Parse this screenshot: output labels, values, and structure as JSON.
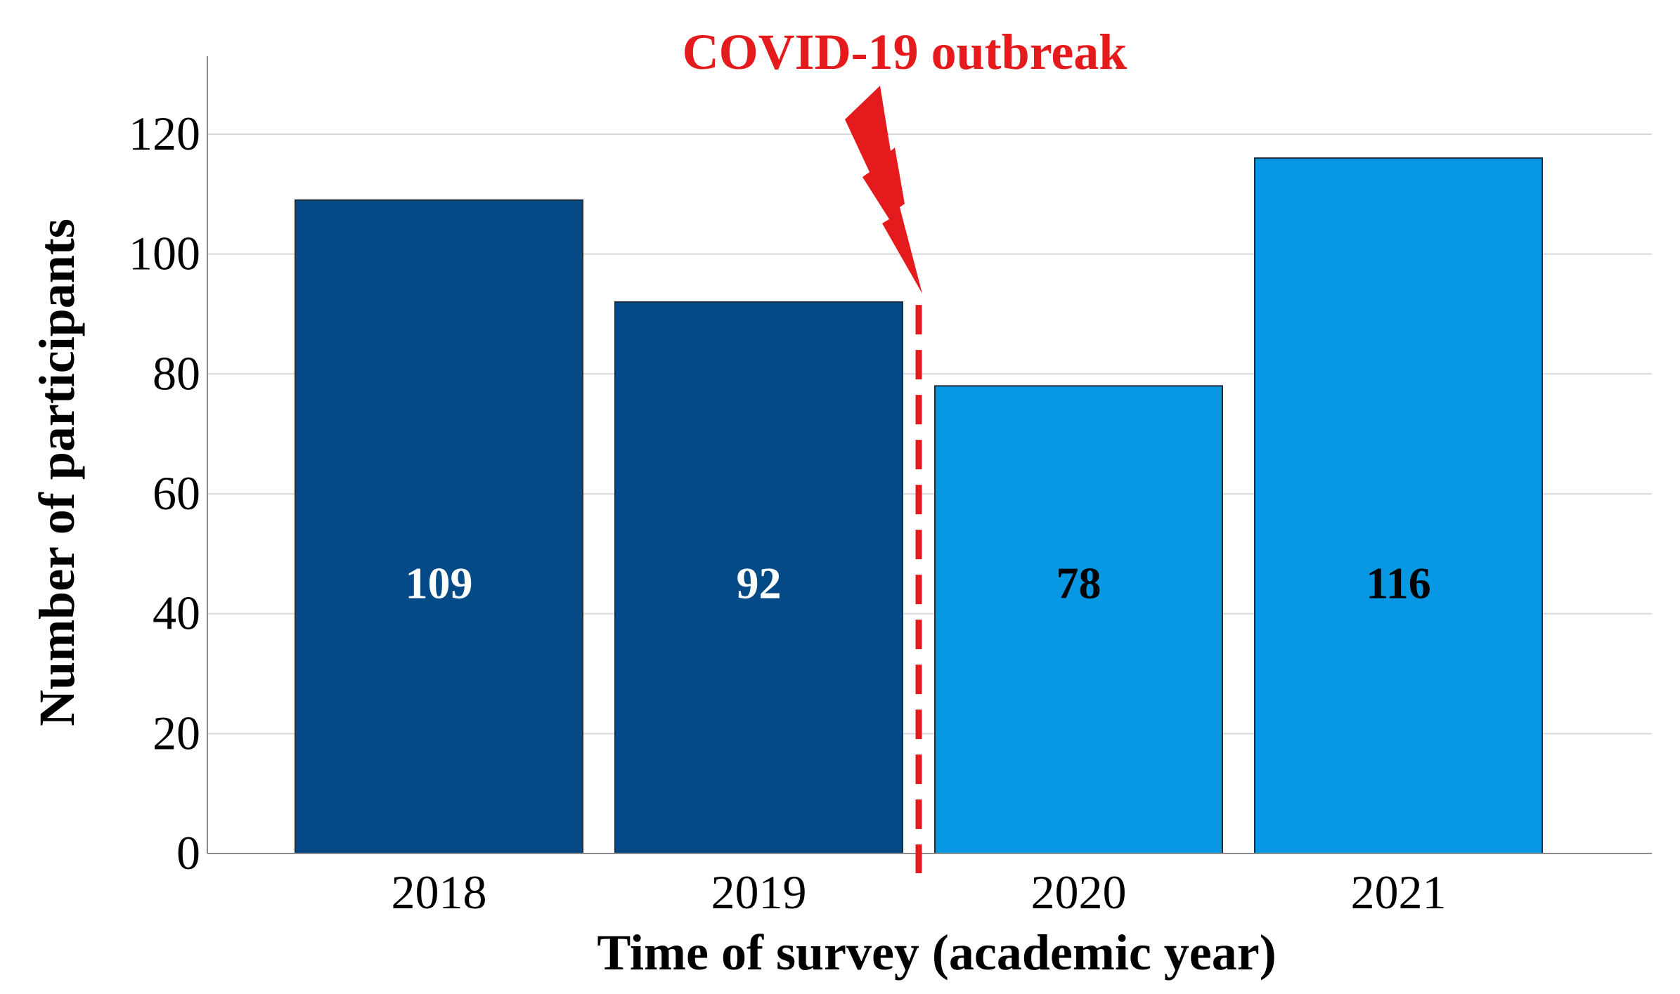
{
  "chart_data": {
    "type": "bar",
    "title": "",
    "xlabel": "Time of survey (academic year)",
    "ylabel": "Number of participants",
    "categories": [
      "2018",
      "2019",
      "2020",
      "2021"
    ],
    "values": [
      109,
      92,
      78,
      116
    ],
    "data_labels": [
      "109",
      "92",
      "78",
      "116"
    ],
    "bar_colors": [
      "#034a87",
      "#034a87",
      "#0797e3",
      "#0797e3"
    ],
    "label_colors": [
      "#ffffff",
      "#ffffff",
      "#000000",
      "#000000"
    ],
    "ylim": [
      0,
      133
    ],
    "yticks": [
      0,
      20,
      40,
      60,
      80,
      100,
      120
    ],
    "grid": true,
    "annotation": {
      "text": "COVID-19 outbreak",
      "color": "#e41a1c",
      "between_categories": [
        "2019",
        "2020"
      ]
    }
  }
}
